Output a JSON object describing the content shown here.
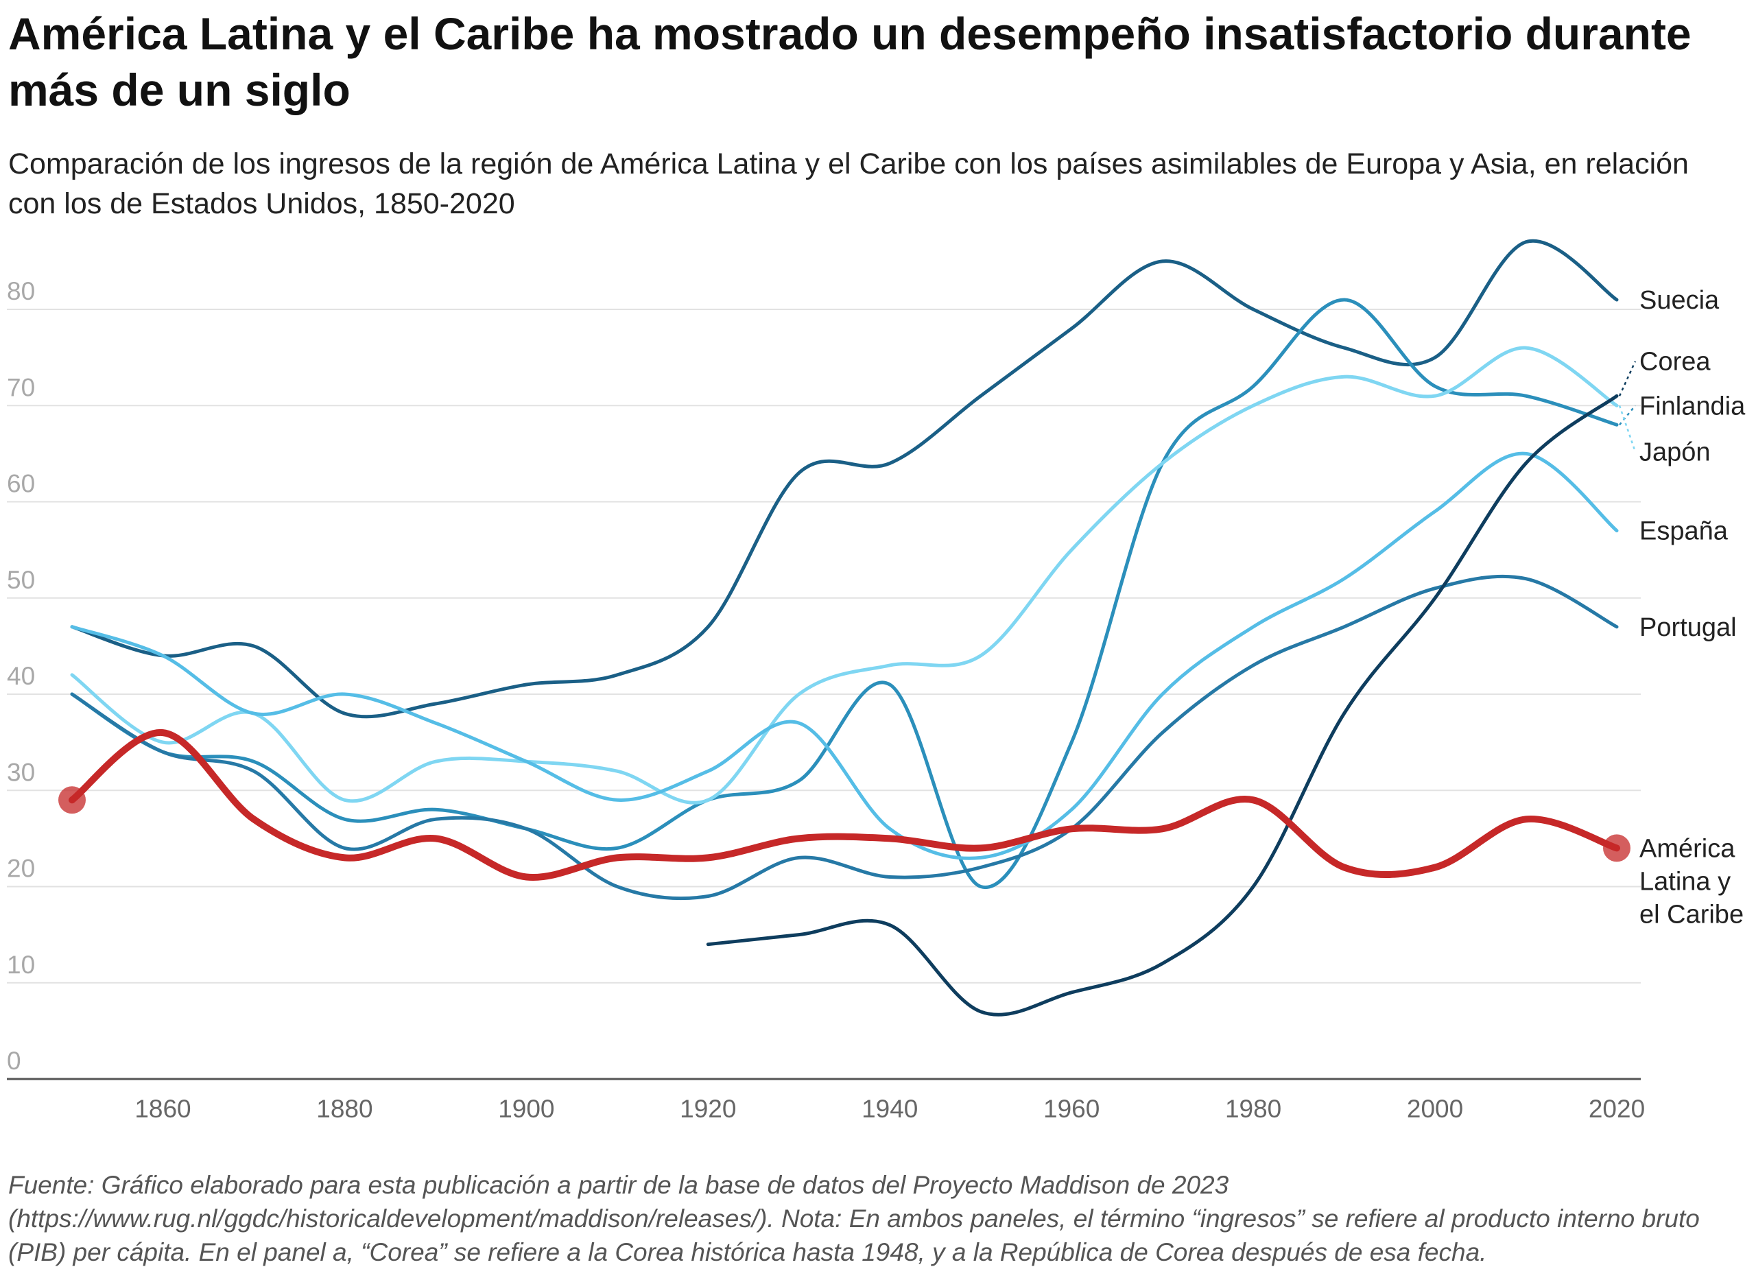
{
  "title": "América Latina y el Caribe ha mostrado un desempeño insatisfactorio durante más de un siglo",
  "subtitle": "Comparación de los ingresos de la región de América Latina y el Caribe con los países asimilables de Europa y Asia, en relación con los de Estados Unidos, 1850-2020",
  "footer": "Fuente: Gráfico elaborado para esta publicación a partir de la base de datos del Proyecto Maddison de 2023 (https://www.rug.nl/ggdc/historicaldevelopment/maddison/releases/). Nota: En ambos paneles, el término “ingresos” se refiere al producto interno bruto (PIB) per cápita. En el panel a, “Corea” se refiere a la Corea histórica hasta 1948, y a la República de Corea después de esa fecha.",
  "chart_data": {
    "type": "line",
    "title": "América Latina y el Caribe ha mostrado un desempeño insatisfactorio durante más de un siglo",
    "xlabel": "",
    "ylabel": "",
    "xlim": [
      1850,
      2020
    ],
    "ylim": [
      0,
      80
    ],
    "x_ticks": [
      1860,
      1880,
      1900,
      1920,
      1940,
      1960,
      1980,
      2000,
      2020
    ],
    "y_ticks": [
      0,
      10,
      20,
      30,
      40,
      50,
      60,
      70,
      80
    ],
    "grid": true,
    "series": [
      {
        "name": "Suecia",
        "color": "#1a5f86",
        "x": [
          1850,
          1860,
          1870,
          1880,
          1890,
          1900,
          1910,
          1920,
          1930,
          1940,
          1950,
          1960,
          1970,
          1980,
          1990,
          2000,
          2010,
          2020
        ],
        "values": [
          47,
          44,
          45,
          38,
          39,
          41,
          42,
          47,
          63,
          64,
          71,
          78,
          85,
          80,
          76,
          75,
          87,
          81
        ]
      },
      {
        "name": "Finlandia",
        "color": "#2b8fbb",
        "x": [
          1850,
          1860,
          1870,
          1880,
          1890,
          1900,
          1910,
          1920,
          1930,
          1940,
          1950,
          1960,
          1970,
          1980,
          1990,
          2000,
          2010,
          2020
        ],
        "values": [
          40,
          34,
          33,
          27,
          28,
          26,
          24,
          29,
          31,
          41,
          20,
          35,
          64,
          72,
          81,
          72,
          71,
          68
        ]
      },
      {
        "name": "Japón",
        "color": "#7fd6f2",
        "x": [
          1850,
          1860,
          1870,
          1880,
          1890,
          1900,
          1910,
          1920,
          1930,
          1940,
          1950,
          1960,
          1970,
          1980,
          1990,
          2000,
          2010,
          2020
        ],
        "values": [
          42,
          35,
          38,
          29,
          33,
          33,
          32,
          29,
          40,
          43,
          44,
          55,
          64,
          70,
          73,
          71,
          76,
          70
        ]
      },
      {
        "name": "España",
        "color": "#55bde6",
        "x": [
          1850,
          1860,
          1870,
          1880,
          1890,
          1900,
          1910,
          1920,
          1930,
          1940,
          1950,
          1960,
          1970,
          1980,
          1990,
          2000,
          2010,
          2020
        ],
        "values": [
          47,
          44,
          38,
          40,
          37,
          33,
          29,
          32,
          37,
          26,
          23,
          28,
          40,
          47,
          52,
          59,
          65,
          57
        ]
      },
      {
        "name": "Portugal",
        "color": "#2679a6",
        "x": [
          1850,
          1860,
          1870,
          1880,
          1890,
          1900,
          1910,
          1920,
          1930,
          1940,
          1950,
          1960,
          1970,
          1980,
          1990,
          2000,
          2010,
          2020
        ],
        "values": [
          40,
          34,
          32,
          24,
          27,
          26,
          20,
          19,
          23,
          21,
          22,
          26,
          36,
          43,
          47,
          51,
          52,
          47
        ]
      },
      {
        "name": "Corea",
        "color": "#0e3d5e",
        "x": [
          1920,
          1930,
          1940,
          1950,
          1960,
          1970,
          1980,
          1990,
          2000,
          2010,
          2020
        ],
        "values": [
          14,
          15,
          16,
          7,
          9,
          12,
          20,
          38,
          50,
          64,
          71
        ]
      },
      {
        "name": "América Latina y el Caribe",
        "color": "#c62828",
        "x": [
          1850,
          1860,
          1870,
          1880,
          1890,
          1900,
          1910,
          1920,
          1930,
          1940,
          1950,
          1960,
          1970,
          1980,
          1990,
          2000,
          2010,
          2020
        ],
        "values": [
          29,
          36,
          27,
          23,
          25,
          21,
          23,
          23,
          25,
          25,
          24,
          26,
          26,
          29,
          22,
          22,
          27,
          24
        ]
      }
    ],
    "end_labels": [
      {
        "series": "Suecia",
        "lines": [
          "Suecia"
        ],
        "label_value": 81
      },
      {
        "series": "Corea",
        "lines": [
          "Corea"
        ],
        "label_value": 74.6
      },
      {
        "series": "Finlandia",
        "lines": [
          "Finlandia"
        ],
        "label_value": 70
      },
      {
        "series": "Japón",
        "lines": [
          "Japón"
        ],
        "label_value": 65.2
      },
      {
        "series": "España",
        "lines": [
          "España"
        ],
        "label_value": 57
      },
      {
        "series": "Portugal",
        "lines": [
          "Portugal"
        ],
        "label_value": 47
      },
      {
        "series": "América Latina y el Caribe",
        "lines": [
          "América",
          "Latina y",
          "el Caribe"
        ],
        "label_value": 24
      }
    ]
  }
}
